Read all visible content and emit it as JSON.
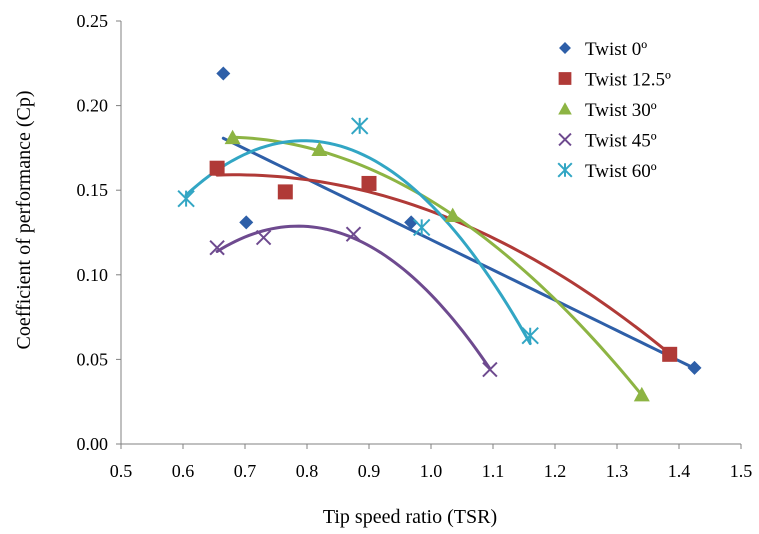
{
  "chart_data": {
    "type": "scatter",
    "title": "",
    "xlabel": "Tip speed ratio (TSR)",
    "ylabel": "Coefficient of performance (Cp)",
    "xlim": [
      0.5,
      1.5
    ],
    "ylim": [
      0.0,
      0.25
    ],
    "x_ticks": [
      "0.5",
      "0.6",
      "0.7",
      "0.8",
      "0.9",
      "1.0",
      "1.1",
      "1.2",
      "1.3",
      "1.4",
      "1.5"
    ],
    "y_ticks": [
      "0.00",
      "0.05",
      "0.10",
      "0.15",
      "0.20",
      "0.25"
    ],
    "grid": false,
    "legend_position": "top-right",
    "series": [
      {
        "name": "Twist 0º",
        "color": "#2E5FA8",
        "marker": "diamond",
        "trend": "linear",
        "points": [
          [
            0.665,
            0.219
          ],
          [
            0.702,
            0.131
          ],
          [
            0.968,
            0.131
          ],
          [
            1.425,
            0.045
          ]
        ],
        "trend_range": [
          0.665,
          1.425
        ]
      },
      {
        "name": "Twist 12.5º",
        "color": "#B03A37",
        "marker": "square",
        "trend": "poly2",
        "points": [
          [
            0.655,
            0.163
          ],
          [
            0.765,
            0.149
          ],
          [
            0.9,
            0.154
          ],
          [
            1.385,
            0.053
          ]
        ],
        "trend_range": [
          0.655,
          1.385
        ]
      },
      {
        "name": "Twist 30º",
        "color": "#8DB443",
        "marker": "triangle",
        "trend": "poly2",
        "points": [
          [
            0.68,
            0.181
          ],
          [
            0.82,
            0.174
          ],
          [
            1.035,
            0.135
          ],
          [
            1.34,
            0.029
          ]
        ],
        "trend_range": [
          0.68,
          1.34
        ]
      },
      {
        "name": "Twist 45º",
        "color": "#6E4A8F",
        "marker": "x",
        "trend": "poly2",
        "points": [
          [
            0.655,
            0.116
          ],
          [
            0.73,
            0.122
          ],
          [
            0.875,
            0.124
          ],
          [
            1.095,
            0.044
          ]
        ],
        "trend_range": [
          0.655,
          1.095
        ]
      },
      {
        "name": "Twist 60º",
        "color": "#32A6C4",
        "marker": "asterisk",
        "trend": "poly2",
        "points": [
          [
            0.605,
            0.145
          ],
          [
            0.885,
            0.188
          ],
          [
            0.985,
            0.128
          ],
          [
            1.16,
            0.064
          ]
        ],
        "trend_range": [
          0.605,
          1.16
        ]
      }
    ]
  }
}
